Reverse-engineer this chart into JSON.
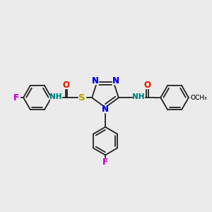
{
  "bg_color": "#ebebeb",
  "figsize": [
    3.0,
    3.0
  ],
  "dpi": 100,
  "bond_color": "#222222",
  "bond_lw": 1.3,
  "atom_colors": {
    "N": "#0000ee",
    "S": "#bbaa00",
    "O": "#ee2200",
    "F": "#cc00cc",
    "NH": "#008888",
    "C": "#222222"
  },
  "font_size": 7.5
}
